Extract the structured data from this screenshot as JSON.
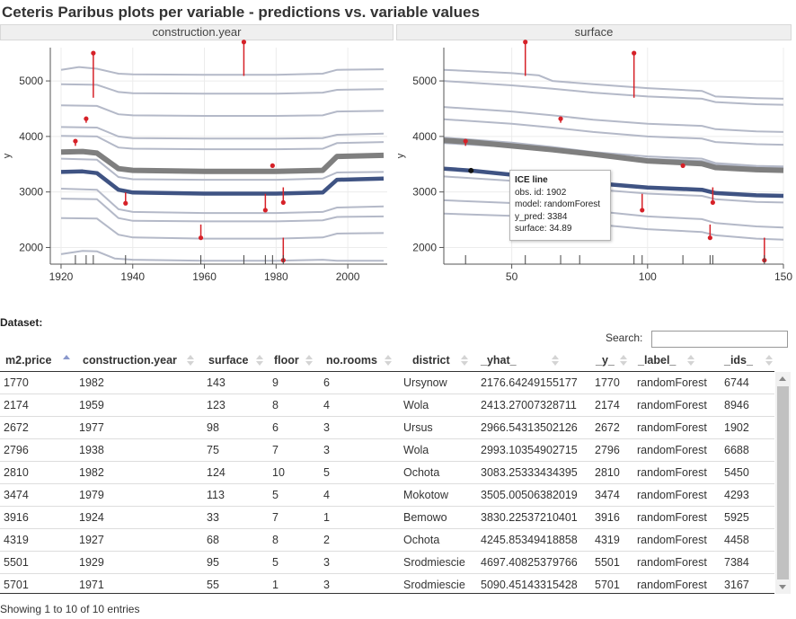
{
  "title": "Ceteris Paribus plots per variable - predictions vs. variable values",
  "panels": [
    {
      "header": "construction.year",
      "ylabel": "y",
      "xticks": [
        "1920",
        "1940",
        "1960",
        "1980",
        "2000"
      ],
      "yticks": [
        "2000",
        "3000",
        "4000",
        "5000"
      ]
    },
    {
      "header": "surface",
      "ylabel": "y",
      "xticks": [
        "50",
        "100",
        "150"
      ],
      "yticks": [
        "2000",
        "3000",
        "4000",
        "5000"
      ]
    }
  ],
  "tooltip": {
    "title": "ICE line",
    "obs_id": "obs. id: 1902",
    "model": "model: randomForest",
    "y_pred": "y_pred: 3384",
    "surface": "surface: 34.89"
  },
  "dataset_label": "Dataset:",
  "search": {
    "label": "Search:",
    "value": ""
  },
  "table": {
    "columns": [
      "m2.price",
      "construction.year",
      "surface",
      "floor",
      "no.rooms",
      "district",
      "_yhat_",
      "_y_",
      "_label_",
      "_ids_"
    ],
    "sorted_column": "m2.price",
    "rows": [
      [
        "1770",
        "1982",
        "143",
        "9",
        "6",
        "Ursynow",
        "2176.64249155177",
        "1770",
        "randomForest",
        "6744"
      ],
      [
        "2174",
        "1959",
        "123",
        "8",
        "4",
        "Wola",
        "2413.27007328711",
        "2174",
        "randomForest",
        "8946"
      ],
      [
        "2672",
        "1977",
        "98",
        "6",
        "3",
        "Ursus",
        "2966.54313502126",
        "2672",
        "randomForest",
        "1902"
      ],
      [
        "2796",
        "1938",
        "75",
        "7",
        "3",
        "Wola",
        "2993.10354902715",
        "2796",
        "randomForest",
        "6688"
      ],
      [
        "2810",
        "1982",
        "124",
        "10",
        "5",
        "Ochota",
        "3083.25333434395",
        "2810",
        "randomForest",
        "5450"
      ],
      [
        "3474",
        "1979",
        "113",
        "5",
        "4",
        "Mokotow",
        "3505.00506382019",
        "3474",
        "randomForest",
        "4293"
      ],
      [
        "3916",
        "1924",
        "33",
        "7",
        "1",
        "Bemowo",
        "3830.22537210401",
        "3916",
        "randomForest",
        "5925"
      ],
      [
        "4319",
        "1927",
        "68",
        "8",
        "2",
        "Ochota",
        "4245.85349418858",
        "4319",
        "randomForest",
        "4458"
      ],
      [
        "5501",
        "1929",
        "95",
        "5",
        "3",
        "Srodmiescie",
        "4697.40825379766",
        "5501",
        "randomForest",
        "7384"
      ],
      [
        "5701",
        "1971",
        "55",
        "1",
        "3",
        "Srodmiescie",
        "5090.45143315428",
        "5701",
        "randomForest",
        "3167"
      ]
    ]
  },
  "info": "Showing 1 to 10 of 10 entries",
  "colors": {
    "ice": "#b4b9c8",
    "pdp": "#7f7f7f",
    "highlight": "#3f5383",
    "residual": "#d62128",
    "axis": "#555555"
  },
  "chart_data": [
    {
      "type": "line",
      "variable": "construction.year",
      "xlim": [
        1917,
        2011
      ],
      "ylim": [
        1700,
        5600
      ],
      "grid": true,
      "ice_curves": [
        {
          "id": "6744",
          "x": [
            1920,
            1926,
            1930,
            1935,
            1940,
            1960,
            1980,
            1993,
            1997,
            2010
          ],
          "y": [
            1880,
            1940,
            1930,
            1800,
            1780,
            1760,
            1760,
            1780,
            1760,
            1760
          ]
        },
        {
          "id": "8946",
          "x": [
            1920,
            1930,
            1936,
            1940,
            1960,
            1980,
            1993,
            1997,
            2010
          ],
          "y": [
            2530,
            2520,
            2230,
            2180,
            2160,
            2160,
            2180,
            2250,
            2260
          ]
        },
        {
          "id": "1902",
          "x": [
            1920,
            1930,
            1936,
            1940,
            1960,
            1980,
            1993,
            1997,
            2010
          ],
          "y": [
            3060,
            3040,
            2690,
            2640,
            2620,
            2620,
            2640,
            2720,
            2740
          ]
        },
        {
          "id": "6688",
          "x": [
            1920,
            1930,
            1936,
            1940,
            1960,
            1980,
            1993,
            1997,
            2010
          ],
          "y": [
            2880,
            2870,
            2530,
            2480,
            2470,
            2470,
            2490,
            2550,
            2560
          ]
        },
        {
          "id": "5450",
          "x": [
            1920,
            1930,
            1936,
            1940,
            1960,
            1980,
            1993,
            1997,
            2010
          ],
          "y": [
            3600,
            3580,
            3270,
            3230,
            3220,
            3220,
            3240,
            3350,
            3360
          ]
        },
        {
          "id": "4293",
          "x": [
            1920,
            1930,
            1936,
            1940,
            1960,
            1980,
            1993,
            1997,
            2010
          ],
          "y": [
            4010,
            4000,
            3800,
            3780,
            3770,
            3770,
            3780,
            3880,
            3900
          ]
        },
        {
          "id": "5925",
          "x": [
            1920,
            1930,
            1936,
            1940,
            1960,
            1980,
            1993,
            1997,
            2010
          ],
          "y": [
            4170,
            4160,
            4000,
            3970,
            3960,
            3960,
            3970,
            4030,
            4050
          ]
        },
        {
          "id": "4458",
          "x": [
            1920,
            1930,
            1936,
            1940,
            1960,
            1980,
            1993,
            1997,
            2010
          ],
          "y": [
            4560,
            4550,
            4400,
            4380,
            4370,
            4370,
            4380,
            4450,
            4460
          ]
        },
        {
          "id": "7384",
          "x": [
            1920,
            1930,
            1936,
            1940,
            1960,
            1980,
            1993,
            1997,
            2010
          ],
          "y": [
            4940,
            4930,
            4800,
            4780,
            4770,
            4770,
            4790,
            4840,
            4850
          ]
        },
        {
          "id": "3167",
          "x": [
            1920,
            1925,
            1930,
            1936,
            1940,
            1960,
            1980,
            1993,
            1997,
            2010
          ],
          "y": [
            5200,
            5250,
            5220,
            5130,
            5120,
            5110,
            5110,
            5130,
            5200,
            5210
          ]
        }
      ],
      "pdp": {
        "x": [
          1920,
          1926,
          1930,
          1936,
          1940,
          1960,
          1980,
          1993,
          1997,
          2010
        ],
        "y": [
          3720,
          3730,
          3700,
          3420,
          3390,
          3370,
          3370,
          3390,
          3640,
          3660
        ]
      },
      "highlight": {
        "id": "1902",
        "x": [
          1920,
          1926,
          1930,
          1936,
          1940,
          1960,
          1980,
          1993,
          1997,
          2010
        ],
        "y": [
          3360,
          3370,
          3340,
          3040,
          2990,
          2970,
          2970,
          2990,
          3220,
          3240
        ]
      },
      "observations": [
        {
          "x": 1982,
          "yhat": 2176.64,
          "y": 1770
        },
        {
          "x": 1959,
          "yhat": 2413.27,
          "y": 2174
        },
        {
          "x": 1977,
          "yhat": 2966.54,
          "y": 2672
        },
        {
          "x": 1938,
          "yhat": 2993.1,
          "y": 2796
        },
        {
          "x": 1982,
          "yhat": 3083.25,
          "y": 2810
        },
        {
          "x": 1979,
          "yhat": 3505.01,
          "y": 3474
        },
        {
          "x": 1924,
          "yhat": 3830.23,
          "y": 3916
        },
        {
          "x": 1927,
          "yhat": 4245.85,
          "y": 4319
        },
        {
          "x": 1929,
          "yhat": 4697.41,
          "y": 5501
        },
        {
          "x": 1971,
          "yhat": 5090.45,
          "y": 5701
        }
      ],
      "rug": [
        1924,
        1927,
        1929,
        1938,
        1959,
        1971,
        1977,
        1979,
        1982
      ]
    },
    {
      "type": "line",
      "variable": "surface",
      "xlim": [
        25,
        150
      ],
      "ylim": [
        1700,
        5600
      ],
      "grid": true,
      "ice_curves": [
        {
          "id": "6744",
          "x": [
            25,
            50,
            65,
            80,
            100,
            120,
            125,
            140,
            150
          ],
          "y": [
            2610,
            2570,
            2520,
            2420,
            2330,
            2280,
            2220,
            2160,
            2140
          ]
        },
        {
          "id": "8946",
          "x": [
            25,
            50,
            65,
            80,
            100,
            120,
            125,
            140,
            150
          ],
          "y": [
            2850,
            2800,
            2740,
            2660,
            2560,
            2510,
            2440,
            2380,
            2360
          ]
        },
        {
          "id": "1902",
          "x": [
            25,
            35,
            50,
            65,
            80,
            100,
            120,
            125,
            140,
            150
          ],
          "y": [
            3420,
            3384,
            3310,
            3240,
            3160,
            3080,
            3040,
            2980,
            2940,
            2930
          ]
        },
        {
          "id": "6688",
          "x": [
            25,
            50,
            65,
            80,
            100,
            120,
            125,
            140,
            150
          ],
          "y": [
            3280,
            3200,
            3130,
            3050,
            2970,
            2930,
            2870,
            2820,
            2810
          ]
        },
        {
          "id": "5450",
          "x": [
            25,
            50,
            65,
            80,
            100,
            120,
            125,
            140,
            150
          ],
          "y": [
            3980,
            3890,
            3810,
            3720,
            3640,
            3600,
            3520,
            3470,
            3460
          ]
        },
        {
          "id": "4293",
          "x": [
            25,
            50,
            65,
            80,
            100,
            120,
            125,
            140,
            150
          ],
          "y": [
            4310,
            4230,
            4160,
            4080,
            4000,
            3960,
            3900,
            3860,
            3850
          ]
        },
        {
          "id": "5925",
          "x": [
            25,
            50,
            65,
            80,
            100,
            120,
            125,
            140,
            150
          ],
          "y": [
            3880,
            3810,
            3760,
            3680,
            3600,
            3560,
            3500,
            3450,
            3440
          ]
        },
        {
          "id": "4458",
          "x": [
            25,
            50,
            65,
            80,
            100,
            120,
            125,
            140,
            150
          ],
          "y": [
            4530,
            4450,
            4380,
            4300,
            4230,
            4190,
            4130,
            4090,
            4080
          ]
        },
        {
          "id": "7384",
          "x": [
            25,
            50,
            65,
            80,
            100,
            120,
            125,
            140,
            150
          ],
          "y": [
            5000,
            4920,
            4860,
            4790,
            4720,
            4680,
            4620,
            4580,
            4570
          ]
        },
        {
          "id": "3167",
          "x": [
            25,
            50,
            60,
            65,
            80,
            100,
            120,
            125,
            140,
            150
          ],
          "y": [
            5200,
            5140,
            5100,
            5000,
            4940,
            4870,
            4820,
            4720,
            4690,
            4680
          ]
        }
      ],
      "pdp": {
        "x": [
          25,
          35,
          50,
          65,
          80,
          100,
          120,
          125,
          140,
          150
        ],
        "y": [
          3930,
          3900,
          3830,
          3760,
          3680,
          3560,
          3510,
          3440,
          3400,
          3390
        ]
      },
      "highlight": {
        "id": "1902",
        "x": [
          25,
          35,
          50,
          65,
          80,
          100,
          120,
          125,
          140,
          150
        ],
        "y": [
          3420,
          3384,
          3310,
          3240,
          3160,
          3080,
          3040,
          2980,
          2940,
          2930
        ]
      },
      "observations": [
        {
          "x": 143,
          "yhat": 2176.64,
          "y": 1770
        },
        {
          "x": 123,
          "yhat": 2413.27,
          "y": 2174
        },
        {
          "x": 98,
          "yhat": 2966.54,
          "y": 2672
        },
        {
          "x": 75,
          "yhat": 2993.1,
          "y": 2796
        },
        {
          "x": 124,
          "yhat": 3083.25,
          "y": 2810
        },
        {
          "x": 113,
          "yhat": 3505.01,
          "y": 3474
        },
        {
          "x": 33,
          "yhat": 3830.23,
          "y": 3916
        },
        {
          "x": 68,
          "yhat": 4245.85,
          "y": 4319
        },
        {
          "x": 95,
          "yhat": 4697.41,
          "y": 5501
        },
        {
          "x": 55,
          "yhat": 5090.45,
          "y": 5701
        }
      ],
      "rug": [
        33,
        55,
        68,
        75,
        95,
        98,
        113,
        123,
        124,
        143
      ]
    }
  ]
}
